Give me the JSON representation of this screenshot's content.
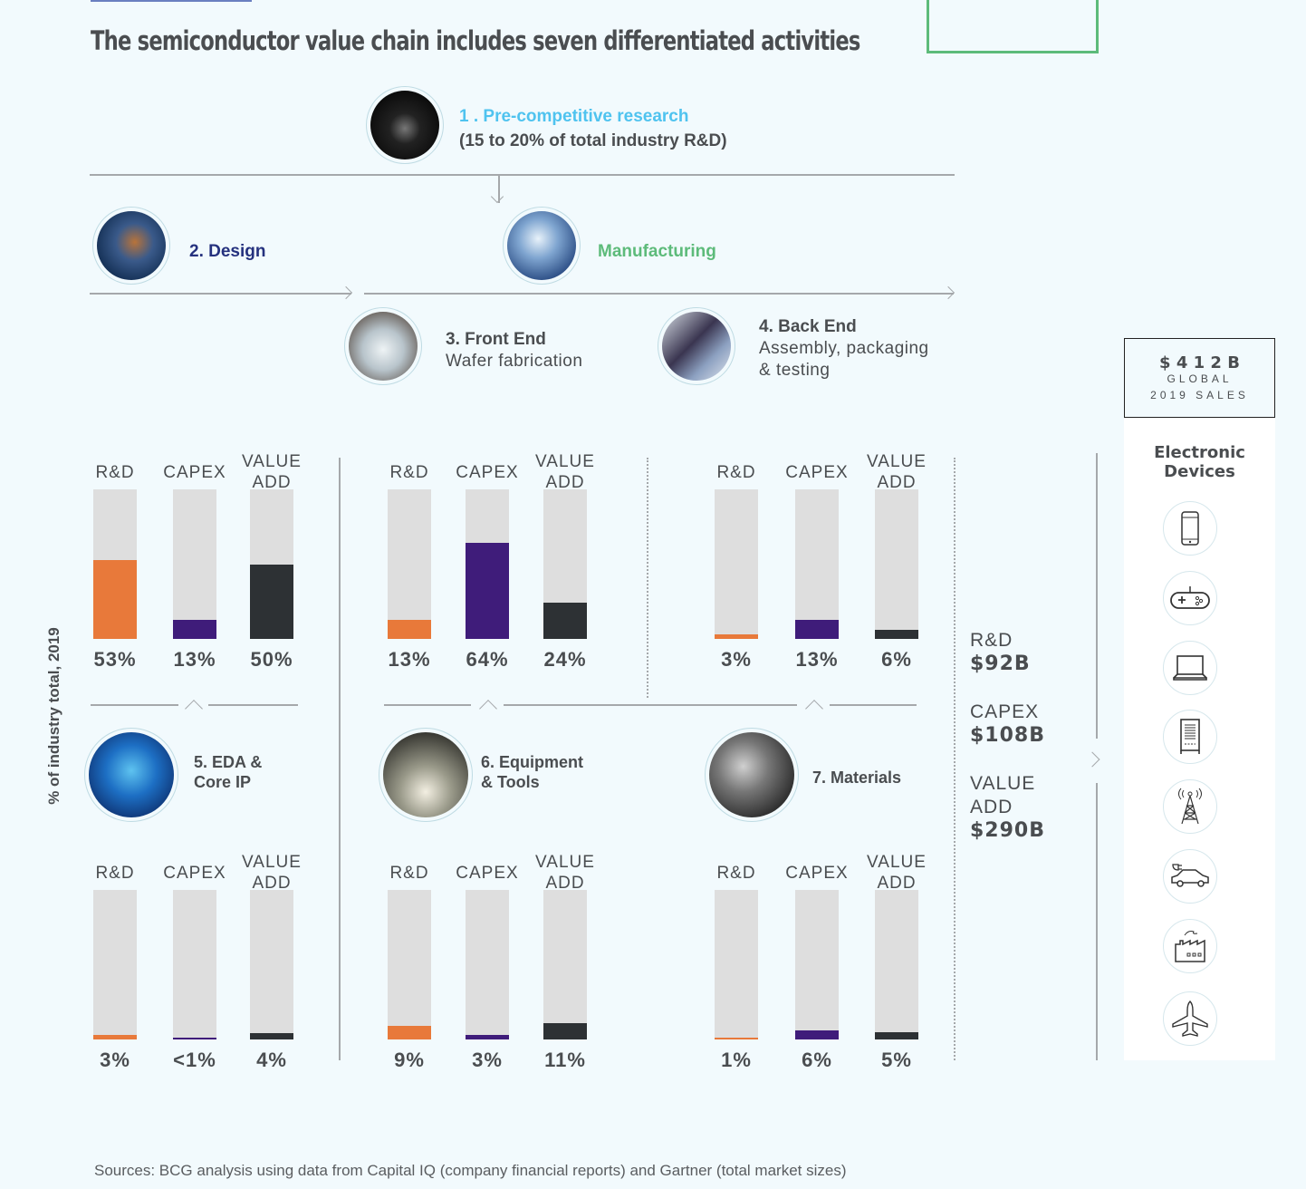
{
  "title": "The semiconductor value chain includes seven differentiated activities",
  "stages": {
    "research": {
      "title": "1 . Pre-competitive research",
      "sub": "(15 to 20% of total industry R&D)"
    },
    "design": {
      "title": "2. Design"
    },
    "manufacturing": {
      "title": "Manufacturing"
    },
    "front_end": {
      "title": "3. Front End",
      "sub": "Wafer fabrication"
    },
    "back_end": {
      "title": "4. Back End",
      "sub1": "Assembly, packaging",
      "sub2": "& testing"
    },
    "eda": {
      "title1": "5. EDA &",
      "title2": "Core IP"
    },
    "equipment": {
      "title1": "6. Equipment",
      "title2": "& Tools"
    },
    "materials": {
      "title": "7. Materials"
    }
  },
  "y_axis_label": "% of industry total, 2019",
  "colors": {
    "rd": "#E8793A",
    "capex": "#3F1C7A",
    "value_add": "#2D3134",
    "track": "#DEDEDE",
    "research": "#4FC3EF",
    "design": "#25317E",
    "manufacturing": "#5DBB7A"
  },
  "chart_data": [
    {
      "type": "bar",
      "group": "Design",
      "categories": [
        "R&D",
        "CAPEX",
        "VALUE ADD"
      ],
      "values": [
        53,
        13,
        50
      ],
      "labels": [
        "53%",
        "13%",
        "50%"
      ],
      "ylim": [
        0,
        100
      ]
    },
    {
      "type": "bar",
      "group": "Front End",
      "categories": [
        "R&D",
        "CAPEX",
        "VALUE ADD"
      ],
      "values": [
        13,
        64,
        24
      ],
      "labels": [
        "13%",
        "64%",
        "24%"
      ],
      "ylim": [
        0,
        100
      ]
    },
    {
      "type": "bar",
      "group": "Back End",
      "categories": [
        "R&D",
        "CAPEX",
        "VALUE ADD"
      ],
      "values": [
        3,
        13,
        6
      ],
      "labels": [
        "3%",
        "13%",
        "6%"
      ],
      "ylim": [
        0,
        100
      ]
    },
    {
      "type": "bar",
      "group": "EDA & Core IP",
      "categories": [
        "R&D",
        "CAPEX",
        "VALUE ADD"
      ],
      "values": [
        3,
        0.5,
        4
      ],
      "labels": [
        "3%",
        "<1%",
        "4%"
      ],
      "ylim": [
        0,
        100
      ]
    },
    {
      "type": "bar",
      "group": "Equipment & Tools",
      "categories": [
        "R&D",
        "CAPEX",
        "VALUE ADD"
      ],
      "values": [
        9,
        3,
        11
      ],
      "labels": [
        "9%",
        "3%",
        "11%"
      ],
      "ylim": [
        0,
        100
      ]
    },
    {
      "type": "bar",
      "group": "Materials",
      "categories": [
        "R&D",
        "CAPEX",
        "VALUE ADD"
      ],
      "values": [
        1,
        6,
        5
      ],
      "labels": [
        "1%",
        "6%",
        "5%"
      ],
      "ylim": [
        0,
        100
      ]
    }
  ],
  "totals": {
    "rd_label": "R&D",
    "rd_value": "$92B",
    "capex_label": "CAPEX",
    "capex_value": "$108B",
    "va_label1": "VALUE",
    "va_label2": "ADD",
    "va_value": "$290B"
  },
  "sales": {
    "value": "$ 4 1 2 B",
    "line1": "GLOBAL",
    "line2": "2019 SALES"
  },
  "devices": {
    "title1": "Electronic",
    "title2": "Devices",
    "icons": [
      "smartphone-icon",
      "gamepad-icon",
      "laptop-icon",
      "server-icon",
      "cell-tower-icon",
      "electric-car-icon",
      "factory-icon",
      "airplane-icon"
    ]
  },
  "source": "Sources: BCG analysis using data from Capital IQ (company financial reports) and Gartner (total market sizes)"
}
